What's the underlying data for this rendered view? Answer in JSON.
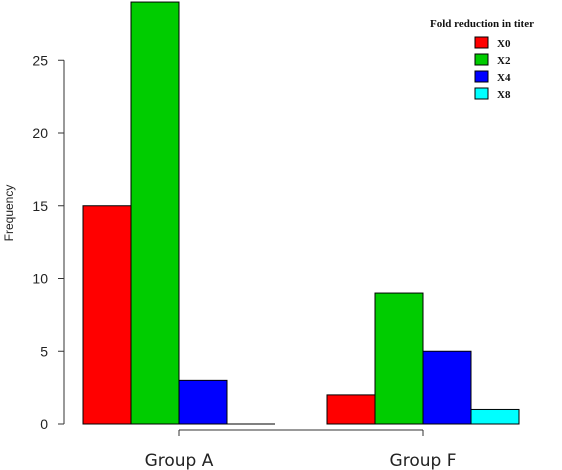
{
  "chart_data": {
    "type": "bar",
    "title": "",
    "xlabel": "",
    "ylabel": "Frequency",
    "categories": [
      "Group A",
      "Group F"
    ],
    "ylim": [
      0,
      29
    ],
    "yticks": [
      0,
      5,
      10,
      15,
      20,
      25
    ],
    "legend": {
      "title": "Fold reduction in titer",
      "position": "top-right"
    },
    "series": [
      {
        "name": "X0",
        "color": "#ff0000",
        "values": [
          15,
          2
        ]
      },
      {
        "name": "X2",
        "color": "#00cc00",
        "values": [
          29,
          9
        ]
      },
      {
        "name": "X4",
        "color": "#0000ff",
        "values": [
          3,
          5
        ]
      },
      {
        "name": "X8",
        "color": "#00ffff",
        "values": [
          0,
          1
        ]
      }
    ]
  }
}
